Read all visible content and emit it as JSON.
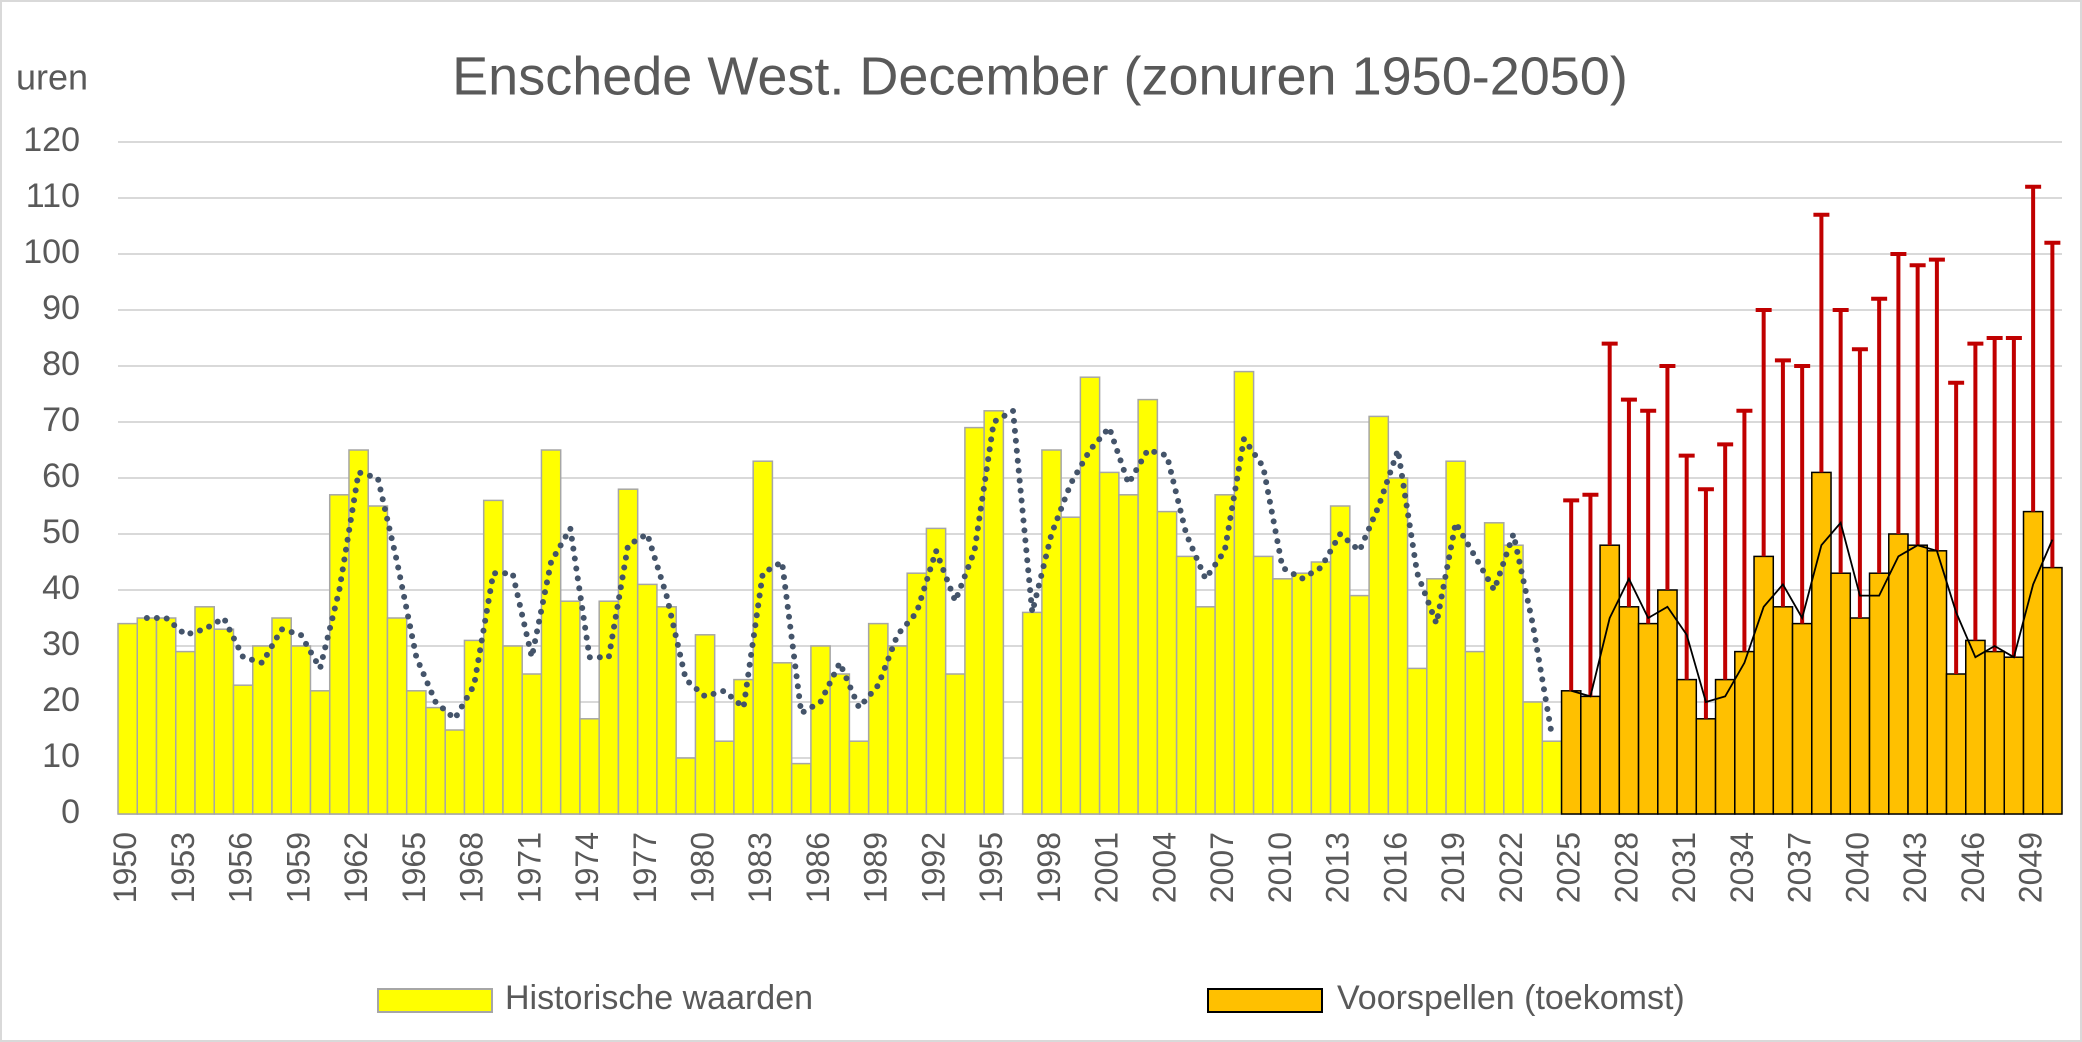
{
  "chart_data": {
    "type": "bar",
    "title": "Enschede West. December (zonuren 1950-2050)",
    "y_label": "uren",
    "categories": [
      1950,
      null,
      null,
      1953,
      null,
      null,
      1956,
      null,
      null,
      1959,
      null,
      null,
      1962,
      null,
      null,
      1965,
      null,
      null,
      1968,
      null,
      null,
      1971,
      null,
      null,
      1974,
      null,
      null,
      1977,
      null,
      null,
      1980,
      null,
      null,
      1983,
      null,
      null,
      1986,
      null,
      null,
      1989,
      null,
      null,
      1992,
      null,
      null,
      1995,
      null,
      null,
      1998,
      null,
      null,
      2001,
      null,
      null,
      2004,
      null,
      null,
      2007,
      null,
      null,
      2010,
      null,
      null,
      2013,
      null,
      null,
      2016,
      null,
      null,
      2019,
      null,
      null,
      2022,
      null,
      null,
      2025,
      null,
      null,
      2028,
      null,
      null,
      2031,
      null,
      null,
      2034,
      null,
      null,
      2037,
      null,
      null,
      2040,
      null,
      null,
      2043,
      null,
      null,
      2046,
      null,
      null,
      2049,
      null
    ],
    "series": [
      {
        "name": "Historische waarden",
        "color": "#ffff00",
        "stroke": "#a6a6a6",
        "values": [
          34,
          35,
          35,
          29,
          37,
          33,
          23,
          30,
          35,
          30,
          22,
          57,
          65,
          55,
          35,
          22,
          19,
          15,
          31,
          56,
          30,
          25,
          65,
          38,
          17,
          38,
          58,
          41,
          37,
          10,
          32,
          13,
          24,
          63,
          27,
          9,
          30,
          25,
          13,
          34,
          30,
          43,
          51,
          25,
          69,
          72,
          null,
          36,
          65,
          53,
          78,
          61,
          57,
          74,
          54,
          46,
          37,
          57,
          79,
          46,
          42,
          43,
          45,
          55,
          39,
          71,
          60,
          26,
          42,
          63,
          29,
          52,
          48,
          20,
          13,
          null,
          null,
          null,
          null,
          null,
          null,
          null,
          null,
          null,
          null,
          null,
          null,
          null,
          null,
          null,
          null,
          null,
          null,
          null,
          null,
          null,
          null,
          null,
          null,
          null,
          null
        ]
      },
      {
        "name": "Voorspellen (toekomst)",
        "color": "#ffc000",
        "stroke": "#000000",
        "error_color": "#c00000",
        "values": [
          null,
          null,
          null,
          null,
          null,
          null,
          null,
          null,
          null,
          null,
          null,
          null,
          null,
          null,
          null,
          null,
          null,
          null,
          null,
          null,
          null,
          null,
          null,
          null,
          null,
          null,
          null,
          null,
          null,
          null,
          null,
          null,
          null,
          null,
          null,
          null,
          null,
          null,
          null,
          null,
          null,
          null,
          null,
          null,
          null,
          null,
          null,
          null,
          null,
          null,
          null,
          null,
          null,
          null,
          null,
          null,
          null,
          null,
          null,
          null,
          null,
          null,
          null,
          null,
          null,
          null,
          null,
          null,
          null,
          null,
          null,
          null,
          null,
          null,
          null,
          22,
          21,
          48,
          37,
          34,
          40,
          24,
          17,
          24,
          29,
          46,
          37,
          34,
          61,
          43,
          35,
          43,
          50,
          48,
          47,
          25,
          31,
          29,
          28,
          54,
          44
        ],
        "errors": [
          null,
          null,
          null,
          null,
          null,
          null,
          null,
          null,
          null,
          null,
          null,
          null,
          null,
          null,
          null,
          null,
          null,
          null,
          null,
          null,
          null,
          null,
          null,
          null,
          null,
          null,
          null,
          null,
          null,
          null,
          null,
          null,
          null,
          null,
          null,
          null,
          null,
          null,
          null,
          null,
          null,
          null,
          null,
          null,
          null,
          null,
          null,
          null,
          null,
          null,
          null,
          null,
          null,
          null,
          null,
          null,
          null,
          null,
          null,
          null,
          null,
          null,
          null,
          null,
          null,
          null,
          null,
          null,
          null,
          null,
          null,
          null,
          null,
          null,
          null,
          34,
          36,
          36,
          37,
          38,
          40,
          40,
          41,
          42,
          43,
          44,
          44,
          46,
          46,
          47,
          48,
          49,
          50,
          50,
          52,
          52,
          53,
          56,
          57,
          58,
          58
        ]
      }
    ],
    "lines": [
      {
        "color": "#44546a",
        "style": "dotted",
        "values": [
          null,
          35,
          35,
          32,
          33,
          35,
          28,
          27,
          33,
          32,
          26,
          40,
          61,
          60,
          45,
          28,
          20,
          17,
          23,
          43,
          43,
          28,
          45,
          51,
          28,
          28,
          48,
          50,
          39,
          24,
          21,
          22,
          19,
          43,
          45,
          18,
          20,
          27,
          19,
          23,
          32,
          36,
          47,
          38,
          47,
          70,
          72,
          36,
          50,
          59,
          65,
          69,
          59,
          65,
          64,
          50,
          42,
          47,
          67,
          62,
          44,
          42,
          44,
          50,
          47,
          55,
          65,
          43,
          34,
          52,
          46,
          40,
          50,
          34,
          14,
          null,
          null,
          null,
          null,
          null,
          null,
          null,
          null,
          null,
          null,
          null,
          null,
          null,
          null,
          null,
          null,
          null,
          null,
          null,
          null,
          null,
          null,
          null,
          null,
          null,
          null
        ]
      },
      {
        "color": "#000000",
        "style": "solid",
        "values": [
          null,
          null,
          null,
          null,
          null,
          null,
          null,
          null,
          null,
          null,
          null,
          null,
          null,
          null,
          null,
          null,
          null,
          null,
          null,
          null,
          null,
          null,
          null,
          null,
          null,
          null,
          null,
          null,
          null,
          null,
          null,
          null,
          null,
          null,
          null,
          null,
          null,
          null,
          null,
          null,
          null,
          null,
          null,
          null,
          null,
          null,
          null,
          null,
          null,
          null,
          null,
          null,
          null,
          null,
          null,
          null,
          null,
          null,
          null,
          null,
          null,
          null,
          null,
          null,
          null,
          null,
          null,
          null,
          null,
          null,
          null,
          null,
          null,
          null,
          null,
          22,
          21,
          35,
          42,
          35,
          37,
          32,
          20,
          21,
          27,
          37,
          41,
          35,
          48,
          52,
          39,
          39,
          46,
          48,
          47,
          36,
          28,
          30,
          28,
          41,
          49
        ]
      }
    ],
    "ylim": [
      0,
      120
    ],
    "yticks": [
      0,
      10,
      20,
      30,
      40,
      50,
      60,
      70,
      80,
      90,
      100,
      110,
      120
    ],
    "grid": true,
    "legend": "bottom"
  }
}
